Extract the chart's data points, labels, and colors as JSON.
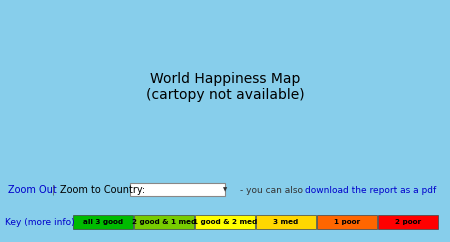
{
  "background_color": "#87CEEB",
  "map_bg_color": "#87CEEB",
  "legend_items": [
    {
      "label": "all 3 good",
      "color": "#00BB00"
    },
    {
      "label": "2 good & 1 med",
      "color": "#77CC00"
    },
    {
      "label": "1 good & 2 med",
      "color": "#FFFF00"
    },
    {
      "label": "3 med",
      "color": "#FFD700"
    },
    {
      "label": "1 poor",
      "color": "#FF6600"
    },
    {
      "label": "2 poor",
      "color": "#FF0000"
    }
  ],
  "zoom_out_text": "Zoom Out",
  "zoom_country_text": "Zoom to Country:",
  "download_text": "download the report as a pdf",
  "download_prefix": "- you can also ",
  "key_text": "Key (more info)",
  "bottom_bg": "#ADD8E6",
  "link_color": "#0000CC",
  "text_color": "#000000",
  "country_colors": {
    "GRL": "#AAAAAA",
    "CAN": "#FF4500",
    "USA": "#FF0000",
    "MEX": "#FF6600",
    "GTM": "#FF6600",
    "BLZ": "#FF6600",
    "HND": "#FF6600",
    "SLV": "#FF6600",
    "NIC": "#FF6600",
    "CRI": "#00BB00",
    "PAN": "#77CC00",
    "CUB": "#FF6600",
    "HTI": "#FF0000",
    "DOM": "#FF6600",
    "JAM": "#FF6600",
    "VEN": "#FF6600",
    "COL": "#FF6600",
    "ECU": "#FF6600",
    "PER": "#FFD700",
    "BRA": "#FFD700",
    "BOL": "#FFD700",
    "PRY": "#FFD700",
    "ARG": "#FFD700",
    "CHL": "#FFD700",
    "URY": "#77CC00",
    "GUY": "#FF6600",
    "SUR": "#FF6600",
    "ISL": "#FF4500",
    "NOR": "#FF4500",
    "SWE": "#FF4500",
    "FIN": "#FF4500",
    "DNK": "#FF4500",
    "GBR": "#FF4500",
    "IRL": "#FF4500",
    "PRT": "#FF4500",
    "ESP": "#FF4500",
    "FRA": "#FF4500",
    "BEL": "#FF4500",
    "NLD": "#FF4500",
    "DEU": "#FF4500",
    "CHE": "#FF4500",
    "AUT": "#FF4500",
    "ITA": "#FF4500",
    "POL": "#FF4500",
    "CZE": "#FF4500",
    "SVK": "#FF4500",
    "HUN": "#FF4500",
    "ROU": "#FF4500",
    "BGR": "#FF4500",
    "GRC": "#FF4500",
    "TUR": "#FF6600",
    "UKR": "#FF0000",
    "BLR": "#FF0000",
    "RUS": "#FF0000",
    "EST": "#FF4500",
    "LVA": "#FF4500",
    "LTU": "#FF4500",
    "MDA": "#FF0000",
    "GEO": "#FF6600",
    "ARM": "#FF6600",
    "AZE": "#FF6600",
    "KAZ": "#FFD700",
    "UZB": "#FFD700",
    "TKM": "#FFD700",
    "KGZ": "#FFD700",
    "TJK": "#FF0000",
    "AFG": "#FF0000",
    "PAK": "#FF0000",
    "IND": "#FF4500",
    "BGD": "#FF0000",
    "MMR": "#FF0000",
    "THA": "#FFD700",
    "VNM": "#FF6600",
    "KHM": "#FF0000",
    "LAO": "#FF0000",
    "CHN": "#FFD700",
    "MNG": "#FFD700",
    "PRK": "#FF0000",
    "KOR": "#FF6600",
    "JPN": "#FF6600",
    "NPL": "#FF0000",
    "BTN": "#FF6600",
    "LKA": "#FF6600",
    "IDN": "#FFD700",
    "MYS": "#FFD700",
    "PHL": "#FF6600",
    "PNG": "#FF6600",
    "AUS": "#FF6600",
    "NZL": "#FF6600",
    "IRN": "#FF6600",
    "IRQ": "#FF0000",
    "SYR": "#FF0000",
    "SAU": "#FFD700",
    "YEM": "#FF0000",
    "OMN": "#FFD700",
    "ARE": "#FFD700",
    "KWT": "#FFD700",
    "QAT": "#FFD700",
    "JOR": "#FF6600",
    "ISR": "#FF4500",
    "LBN": "#FF6600",
    "EGY": "#FF6600",
    "LBY": "#FF6600",
    "TUN": "#FF6600",
    "DZA": "#FF6600",
    "MAR": "#FF6600",
    "MRT": "#FF0000",
    "SEN": "#FF0000",
    "GMB": "#FF0000",
    "GNB": "#FF0000",
    "GIN": "#FF0000",
    "SLE": "#FF0000",
    "LBR": "#FF0000",
    "CIV": "#FF0000",
    "GHA": "#FF0000",
    "BFA": "#FF0000",
    "MLI": "#FF0000",
    "NER": "#FF0000",
    "TCD": "#FF0000",
    "NGA": "#FF0000",
    "CMR": "#FF0000",
    "CAF": "#FF0000",
    "SDN": "#FF0000",
    "SSD": "#FF0000",
    "ETH": "#FF0000",
    "ERI": "#FF0000",
    "DJI": "#FF0000",
    "SOM": "#FF0000",
    "KEN": "#FF0000",
    "UGA": "#FF0000",
    "RWA": "#FF0000",
    "BDI": "#FF0000",
    "TZA": "#FF0000",
    "MOZ": "#FF0000",
    "ZMB": "#FF0000",
    "ZWE": "#FF0000",
    "MWI": "#FF0000",
    "AGO": "#FF0000",
    "COD": "#FF0000",
    "COG": "#FF0000",
    "GAB": "#FF6600",
    "GNQ": "#FF6600",
    "ZAF": "#FF4500",
    "NAM": "#FF4500",
    "BWA": "#FFD700",
    "MDG": "#FF0000",
    "BEN": "#FF0000",
    "TGO": "#FF0000"
  },
  "default_country_color": "#FF4500"
}
